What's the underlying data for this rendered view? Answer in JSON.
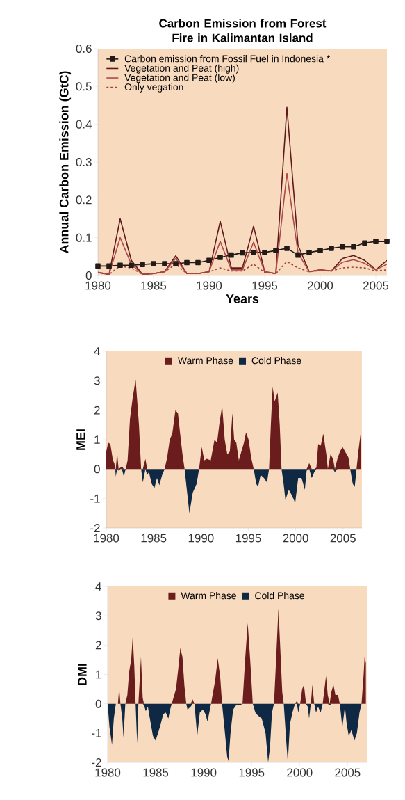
{
  "chart_data": [
    {
      "type": "line",
      "title": "Carbon Emission from Forest Fire in Kalimantan Island",
      "xlabel": "Years",
      "ylabel": "Annual Carbon Emission (GtC)",
      "x": [
        1980,
        1981,
        1982,
        1983,
        1984,
        1985,
        1986,
        1987,
        1988,
        1989,
        1990,
        1991,
        1992,
        1993,
        1994,
        1995,
        1996,
        1997,
        1998,
        1999,
        2000,
        2001,
        2002,
        2003,
        2004,
        2005,
        2006
      ],
      "series": [
        {
          "name": "Carbon emission from Fossil Fuel in Indonesia *",
          "color": "#231a18",
          "marker": "square",
          "line_style": "solid",
          "values": [
            0.025,
            0.025,
            0.027,
            0.027,
            0.029,
            0.031,
            0.031,
            0.031,
            0.034,
            0.034,
            0.04,
            0.048,
            0.054,
            0.06,
            0.061,
            0.061,
            0.066,
            0.072,
            0.054,
            0.061,
            0.066,
            0.072,
            0.076,
            0.076,
            0.086,
            0.09,
            0.09
          ]
        },
        {
          "name": "Vegetation and Peat (high)",
          "color": "#5e1a1a",
          "marker": "none",
          "line_style": "solid",
          "values": [
            0.008,
            0.003,
            0.15,
            0.04,
            0.003,
            0.005,
            0.01,
            0.052,
            0.005,
            0.005,
            0.01,
            0.143,
            0.02,
            0.02,
            0.13,
            0.01,
            0.005,
            0.445,
            0.08,
            0.01,
            0.015,
            0.012,
            0.045,
            0.053,
            0.04,
            0.015,
            0.04
          ]
        },
        {
          "name": "Vegetation and Peat (low)",
          "color": "#b04848",
          "marker": "none",
          "line_style": "solid",
          "values": [
            0.008,
            0.003,
            0.1,
            0.03,
            0.003,
            0.005,
            0.01,
            0.045,
            0.005,
            0.005,
            0.01,
            0.09,
            0.015,
            0.015,
            0.088,
            0.01,
            0.005,
            0.27,
            0.06,
            0.01,
            0.015,
            0.012,
            0.035,
            0.042,
            0.032,
            0.015,
            0.03
          ]
        },
        {
          "name": "Only vegation",
          "color": "#a0403c",
          "marker": "none",
          "line_style": "dashed",
          "values": [
            0.008,
            0.003,
            0.025,
            0.02,
            0.003,
            0.005,
            0.01,
            0.03,
            0.005,
            0.005,
            0.01,
            0.02,
            0.012,
            0.012,
            0.03,
            0.008,
            0.005,
            0.037,
            0.02,
            0.01,
            0.013,
            0.012,
            0.02,
            0.022,
            0.02,
            0.012,
            0.015
          ]
        }
      ],
      "xlim": [
        1980,
        2006
      ],
      "ylim": [
        0,
        0.6
      ],
      "xticks": [
        1980,
        1985,
        1990,
        1995,
        2000,
        2005
      ],
      "yticks": [
        0,
        0.1,
        0.2,
        0.3,
        0.4,
        0.5,
        0.6
      ],
      "legend": "top left"
    },
    {
      "type": "area",
      "ylabel": "MEI",
      "x": [
        1980.0,
        1980.2,
        1980.43,
        1980.7,
        1980.85,
        1980.95,
        1981.0,
        1981.15,
        1981.3,
        1981.5,
        1981.65,
        1981.85,
        1982.05,
        1982.25,
        1982.5,
        1982.78,
        1983.1,
        1983.45,
        1983.68,
        1983.86,
        1984.13,
        1984.32,
        1984.5,
        1984.8,
        1985.08,
        1985.35,
        1985.6,
        1985.9,
        1986.16,
        1986.43,
        1986.7,
        1986.97,
        1987.3,
        1987.57,
        1987.8,
        1988.05,
        1988.27,
        1988.54,
        1988.78,
        1989.13,
        1989.54,
        1989.8,
        1990.08,
        1990.35,
        1990.62,
        1991.03,
        1991.43,
        1991.7,
        1991.97,
        1992.24,
        1992.51,
        1992.78,
        1993.05,
        1993.32,
        1993.51,
        1993.73,
        1994.0,
        1994.27,
        1994.54,
        1994.76,
        1995.03,
        1995.3,
        1995.57,
        1995.84,
        1996.03,
        1996.3,
        1996.65,
        1996.97,
        1997.19,
        1997.38,
        1997.57,
        1997.78,
        1998.1,
        1998.32,
        1998.51,
        1998.73,
        1998.92,
        1999.27,
        1999.62,
        1999.95,
        2000.27,
        2000.62,
        2000.97,
        2001.16,
        2001.43,
        2001.7,
        2001.97,
        2002.19,
        2002.38,
        2002.65,
        2002.92,
        2003.24,
        2003.4,
        2003.68,
        2003.95,
        2004.14,
        2004.41,
        2004.68,
        2004.95,
        2005.22,
        2005.57,
        2005.76,
        2006.03,
        2006.24,
        2006.43,
        2006.62,
        2006.86
      ],
      "series": [
        {
          "name": "Warm Phase",
          "color": "#6b1d1d",
          "values": [
            0.6,
            0.9,
            0.85,
            0.3,
            0.2,
            0,
            0,
            0.55,
            0,
            0.05,
            0.1,
            0,
            0,
            0.3,
            1.7,
            2.4,
            3.05,
            1.5,
            0,
            0,
            0.35,
            0,
            0,
            0,
            0,
            0,
            0,
            0,
            0,
            0.4,
            1.0,
            1.2,
            2.0,
            1.9,
            1.2,
            0.5,
            0,
            0,
            0,
            0,
            0,
            0,
            0.75,
            0.3,
            0.35,
            0.3,
            1.0,
            0.9,
            1.6,
            2.15,
            1.0,
            0.5,
            0.6,
            1.9,
            1.0,
            0.9,
            0.3,
            0.6,
            0.9,
            1.25,
            1.0,
            0.4,
            0,
            0,
            0,
            0,
            0,
            0,
            0,
            1.5,
            2.8,
            2.3,
            2.6,
            1.5,
            0,
            0,
            0,
            0,
            0,
            0,
            0,
            0,
            0,
            0,
            0.2,
            0,
            0,
            0.05,
            0.85,
            0.8,
            1.2,
            0.5,
            0,
            0.5,
            0.35,
            0,
            0.35,
            0.6,
            0.75,
            0.6,
            0.4,
            0,
            0,
            0,
            0,
            0.6,
            1.2
          ]
        },
        {
          "name": "Cold Phase",
          "color": "#0f2844",
          "values": [
            0,
            0,
            0,
            0,
            0,
            0,
            -0.25,
            0,
            -0.05,
            0,
            0,
            -0.25,
            0,
            0,
            0,
            0,
            0,
            0,
            0,
            -0.45,
            0,
            -0.2,
            -0.1,
            -0.5,
            -0.65,
            -0.3,
            -0.55,
            -0.2,
            0,
            0,
            0,
            0,
            0,
            0,
            0,
            0,
            0,
            -0.8,
            -1.5,
            -0.8,
            -0.5,
            0,
            0,
            0,
            0,
            0,
            0,
            0,
            0,
            0,
            0,
            0,
            0,
            0,
            0,
            0,
            0,
            0,
            0,
            0,
            0,
            0,
            0,
            -0.5,
            -0.6,
            -0.2,
            -0.3,
            -0.45,
            0,
            0,
            0,
            0,
            0,
            0,
            0,
            -0.5,
            -1.05,
            -0.7,
            -0.9,
            -1.15,
            -0.3,
            -0.3,
            -0.7,
            -0.05,
            0,
            -0.3,
            -0.1,
            0,
            0,
            0,
            0,
            0,
            0,
            0,
            0,
            -0.1,
            0,
            0,
            0,
            0,
            0,
            0,
            -0.5,
            -0.6,
            0,
            0,
            0
          ]
        }
      ],
      "xlim": [
        1980,
        2007
      ],
      "ylim": [
        -2,
        4
      ],
      "xticks": [
        1980,
        1985,
        1990,
        1995,
        2000,
        2005
      ],
      "yticks": [
        -2,
        -1,
        0,
        1,
        2,
        3,
        4
      ],
      "legend": "top"
    },
    {
      "type": "area",
      "ylabel": "DMI",
      "x": [
        1980.0,
        1980.19,
        1980.45,
        1980.64,
        1980.85,
        1981.07,
        1981.2,
        1981.33,
        1981.52,
        1981.65,
        1981.84,
        1982.05,
        1982.24,
        1982.45,
        1982.61,
        1982.77,
        1982.91,
        1983.07,
        1983.2,
        1983.47,
        1983.65,
        1983.79,
        1983.97,
        1984.19,
        1984.45,
        1984.72,
        1984.99,
        1985.25,
        1985.52,
        1985.79,
        1986.05,
        1986.32,
        1986.51,
        1986.67,
        1986.85,
        1987.12,
        1987.39,
        1987.57,
        1987.79,
        1988.0,
        1988.19,
        1988.32,
        1988.64,
        1988.85,
        1989.04,
        1989.33,
        1989.6,
        1989.92,
        1990.19,
        1990.4,
        1990.59,
        1990.77,
        1990.93,
        1991.2,
        1991.47,
        1991.73,
        1991.92,
        1992.19,
        1992.45,
        1992.59,
        1992.8,
        1993.07,
        1993.39,
        1993.79,
        1994.05,
        1994.32,
        1994.59,
        1994.85,
        1995.12,
        1995.39,
        1995.65,
        1996.05,
        1996.45,
        1996.72,
        1996.91,
        1997.12,
        1997.33,
        1997.55,
        1997.79,
        1997.97,
        1998.19,
        1998.35,
        1998.59,
        1998.77,
        1998.99,
        1999.25,
        1999.52,
        1999.71,
        1999.87,
        2000.05,
        2000.27,
        2000.45,
        2000.67,
        2000.85,
        2000.99,
        2001.17,
        2001.33,
        2001.52,
        2001.71,
        2001.92,
        2002.19,
        2002.4,
        2002.59,
        2002.75,
        2002.93,
        2003.12,
        2003.31,
        2003.52,
        2003.73,
        2004.0,
        2004.19,
        2004.45,
        2004.72,
        2004.91,
        2005.12,
        2005.39,
        2005.71,
        2005.97,
        2006.24,
        2006.45,
        2006.67,
        2006.77,
        2006.9
      ],
      "series": [
        {
          "name": "Warm Phase",
          "color": "#6b1d1d",
          "values": [
            0,
            0,
            0,
            0,
            0,
            0,
            0.55,
            0,
            0,
            0,
            0,
            0.3,
            1.1,
            1.5,
            2.3,
            1.3,
            0,
            0,
            0,
            1.6,
            0.2,
            0,
            0,
            0,
            0,
            0,
            0,
            0,
            0,
            0,
            0,
            0,
            0,
            0,
            0.2,
            0.5,
            1.3,
            1.9,
            1.6,
            0.6,
            0,
            0,
            0,
            0.15,
            0,
            0,
            0,
            0,
            0,
            0,
            0,
            0,
            0.3,
            0.8,
            1.55,
            0.9,
            0,
            0,
            0,
            0,
            0,
            0,
            0,
            0,
            0,
            1.5,
            2.75,
            1.5,
            0,
            0,
            0,
            0,
            0,
            0,
            0,
            0,
            0,
            1.5,
            3.25,
            2.0,
            0.4,
            0,
            0,
            0,
            0,
            0,
            0,
            0.1,
            0,
            0,
            0.5,
            0.65,
            0,
            0,
            0,
            0,
            0.65,
            0,
            0,
            0,
            0,
            0,
            0.5,
            0.95,
            0.3,
            0,
            0.4,
            0.65,
            0.3,
            0.3,
            0,
            0,
            0,
            0,
            0,
            0,
            0,
            0,
            0,
            0,
            1.0,
            1.6,
            1.4
          ]
        },
        {
          "name": "Cold Phase",
          "color": "#0f2844",
          "values": [
            0,
            -0.8,
            -1.4,
            -0.5,
            0,
            0,
            0,
            0,
            -0.5,
            -1.15,
            0,
            0,
            0,
            0,
            0,
            0,
            0,
            -1.35,
            0,
            0,
            0,
            -0.05,
            -0.25,
            -0.1,
            -0.6,
            -1.1,
            -1.25,
            -1.0,
            -0.7,
            -0.35,
            -0.3,
            -0.5,
            -0.2,
            0,
            0,
            0,
            0,
            0,
            0,
            0,
            0,
            -0.2,
            -0.1,
            0,
            0,
            -1.1,
            -0.3,
            -0.2,
            -0.35,
            -0.6,
            -0.3,
            0,
            0,
            0,
            0,
            0,
            0,
            -0.9,
            -1.8,
            -1.95,
            -1.0,
            -0.2,
            -0.05,
            -0.05,
            0,
            0,
            0,
            0,
            0,
            -0.3,
            -0.4,
            -0.5,
            -1.0,
            -2.0,
            -1.5,
            -0.3,
            0,
            0,
            0,
            0,
            0,
            0,
            -1.2,
            -2.0,
            -0.7,
            -0.3,
            0,
            0,
            -0.3,
            0,
            0,
            0,
            0,
            -0.1,
            -0.5,
            0,
            0,
            0,
            -0.3,
            -0.1,
            -0.3,
            0,
            0,
            0,
            0,
            -0.05,
            0,
            0,
            0,
            0,
            0,
            -0.8,
            -0.1,
            -0.7,
            -1.1,
            -0.9,
            -1.25,
            -1.0,
            -0.3,
            0,
            0,
            0,
            0
          ]
        }
      ],
      "xlim": [
        1980,
        2007
      ],
      "ylim": [
        -2,
        4
      ],
      "xticks": [
        1980,
        1985,
        1990,
        1995,
        2000,
        2005
      ],
      "yticks": [
        -2,
        -1,
        0,
        1,
        2,
        3,
        4
      ],
      "legend": "top"
    }
  ]
}
